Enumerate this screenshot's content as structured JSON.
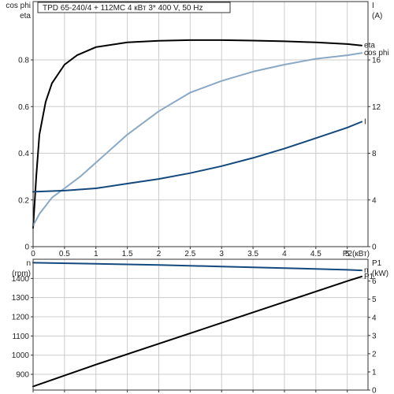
{
  "title": "TPD 65-240/4 + 112MC    4 кВт   3* 400 V, 50 Hz",
  "colors": {
    "eta": "#000000",
    "cos_phi": "#8aa9c6",
    "current": "#13497c",
    "speed": "#13497c",
    "p1": "#000000",
    "grid": "#cccccc"
  },
  "chart_data": [
    {
      "type": "line",
      "panel": "efficiency",
      "xlabel": "P2(кВт)",
      "xlim": [
        0,
        5.33
      ],
      "xticks": [
        0,
        0.5,
        1,
        1.5,
        2,
        2.5,
        3,
        3.5,
        4,
        4.5,
        5
      ],
      "xtick_labels": [
        "0",
        "0.5",
        "1",
        "1.5",
        "2",
        "2.5",
        "3",
        "3.5",
        "4",
        "4.5",
        "5"
      ],
      "y_left_label_lines": [
        "cos phi",
        "eta"
      ],
      "ylim_left": [
        0,
        1.05
      ],
      "yticks_left": [
        0,
        0.2,
        0.4,
        0.6,
        0.8
      ],
      "ytick_labels_left": [
        "0",
        "0.2",
        "0.4",
        "0.6",
        "0.8"
      ],
      "y_right_label_lines": [
        "I",
        "(A)"
      ],
      "ylim_right": [
        0,
        21
      ],
      "yticks_right": [
        0,
        4,
        8,
        12,
        16
      ],
      "ytick_labels_right": [
        "0",
        "4",
        "8",
        "12",
        "16"
      ],
      "grid": true,
      "series": [
        {
          "name": "eta",
          "axis": "left",
          "color_key": "eta",
          "x": [
            0,
            0.05,
            0.1,
            0.2,
            0.3,
            0.5,
            0.7,
            1.0,
            1.5,
            2.0,
            2.5,
            3.0,
            3.5,
            4.0,
            4.5,
            5.0,
            5.23
          ],
          "y": [
            0.08,
            0.3,
            0.48,
            0.62,
            0.7,
            0.78,
            0.82,
            0.855,
            0.875,
            0.882,
            0.885,
            0.885,
            0.883,
            0.88,
            0.875,
            0.868,
            0.862
          ]
        },
        {
          "name": "cos phi",
          "axis": "left",
          "color_key": "cos_phi",
          "x": [
            0,
            0.1,
            0.3,
            0.5,
            0.75,
            1.0,
            1.5,
            2.0,
            2.5,
            3.0,
            3.5,
            4.0,
            4.5,
            5.0,
            5.23
          ],
          "y": [
            0.09,
            0.14,
            0.21,
            0.25,
            0.3,
            0.36,
            0.48,
            0.58,
            0.66,
            0.71,
            0.75,
            0.78,
            0.805,
            0.82,
            0.83
          ]
        },
        {
          "name": "I",
          "axis": "right",
          "color_key": "current",
          "x": [
            0,
            0.5,
            1.0,
            1.5,
            2.0,
            2.5,
            3.0,
            3.5,
            4.0,
            4.5,
            5.0,
            5.23
          ],
          "y": [
            4.7,
            4.8,
            5.0,
            5.4,
            5.8,
            6.3,
            6.9,
            7.6,
            8.4,
            9.3,
            10.2,
            10.7
          ]
        }
      ]
    },
    {
      "type": "line",
      "panel": "speed_power",
      "xlim": [
        0,
        5.33
      ],
      "y_left_label_lines": [
        "n",
        "(rpm)"
      ],
      "ylim_left": [
        818,
        1500
      ],
      "yticks_left": [
        900,
        1000,
        1100,
        1200,
        1300,
        1400
      ],
      "ytick_labels_left": [
        "900",
        "1000",
        "1100",
        "1200",
        "1300",
        "1400"
      ],
      "y_right_label_lines": [
        "P1",
        "(kW)"
      ],
      "ylim_right": [
        0,
        7.2
      ],
      "yticks_right": [
        0,
        1,
        2,
        3,
        4,
        5,
        6
      ],
      "ytick_labels_right": [
        "0",
        "1",
        "2",
        "3",
        "4",
        "5",
        "6"
      ],
      "grid": true,
      "series": [
        {
          "name": "n",
          "axis": "left",
          "color_key": "speed",
          "x": [
            0,
            1,
            2,
            3,
            4,
            5,
            5.23
          ],
          "y": [
            1482,
            1476,
            1470,
            1462,
            1454,
            1445,
            1442
          ]
        },
        {
          "name": "P1",
          "axis": "right",
          "color_key": "p1",
          "x": [
            0,
            1,
            2,
            3,
            4,
            5,
            5.23
          ],
          "y": [
            0.2,
            1.4,
            2.55,
            3.7,
            4.85,
            6.0,
            6.25
          ]
        }
      ]
    }
  ]
}
